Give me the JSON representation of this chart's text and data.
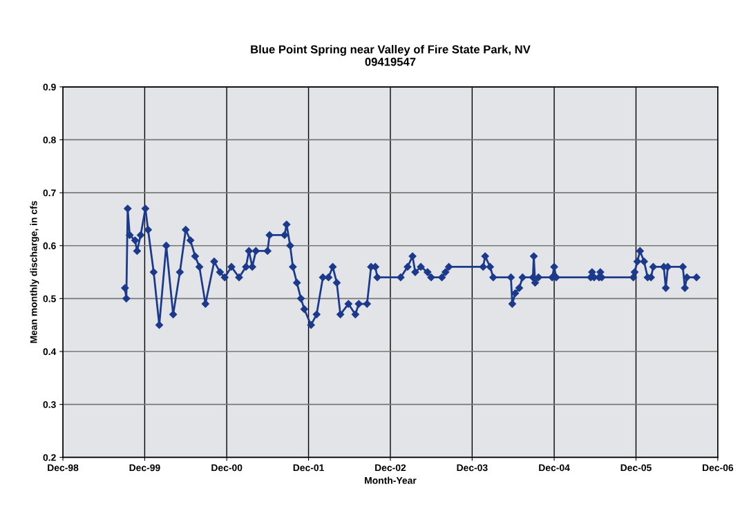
{
  "chart_data": {
    "type": "line",
    "title": "Blue Point Spring near Valley of Fire State Park, NV\n09419547",
    "xlabel": "Month-Year",
    "ylabel": "Mean monthly discharge, in cfs",
    "x": [
      "1999-09-04",
      "1999-09-10",
      "1999-09-16",
      "1999-09-25",
      "1999-10-19",
      "1999-10-28",
      "1999-11-13",
      "1999-12-04",
      "1999-12-16",
      "2000-01-10",
      "2000-02-04",
      "2000-03-06",
      "2000-04-06",
      "2000-05-06",
      "2000-06-01",
      "2000-06-22",
      "2000-07-13",
      "2000-08-01",
      "2000-08-28",
      "2000-10-06",
      "2000-11-01",
      "2000-11-22",
      "2000-12-22",
      "2001-01-25",
      "2001-02-25",
      "2001-03-10",
      "2001-03-25",
      "2001-04-10",
      "2001-06-01",
      "2001-06-10",
      "2001-08-16",
      "2001-08-25",
      "2001-09-10",
      "2001-09-22",
      "2001-10-10",
      "2001-10-28",
      "2001-11-12",
      "2001-12-12",
      "2002-01-06",
      "2002-02-03",
      "2002-02-28",
      "2002-03-19",
      "2002-04-06",
      "2002-04-22",
      "2002-05-28",
      "2002-06-28",
      "2002-07-13",
      "2002-08-19",
      "2002-09-06",
      "2002-09-25",
      "2002-10-04",
      "2003-01-16",
      "2003-02-16",
      "2003-03-10",
      "2003-03-22",
      "2003-04-16",
      "2003-05-16",
      "2003-06-01",
      "2003-07-19",
      "2003-08-04",
      "2003-08-19",
      "2004-01-19",
      "2004-01-28",
      "2004-02-19",
      "2004-03-04",
      "2004-05-22",
      "2004-05-28",
      "2004-06-10",
      "2004-06-28",
      "2004-07-13",
      "2004-08-28",
      "2004-09-01",
      "2004-09-07",
      "2004-09-22",
      "2004-11-22",
      "2004-12-01",
      "2004-12-10",
      "2005-05-13",
      "2005-05-19",
      "2005-05-28",
      "2005-06-19",
      "2005-06-25",
      "2005-07-01",
      "2005-11-19",
      "2005-11-25",
      "2005-12-07",
      "2005-12-19",
      "2006-01-06",
      "2006-01-22",
      "2006-02-06",
      "2006-02-16",
      "2006-04-04",
      "2006-04-13",
      "2006-04-22",
      "2006-06-28",
      "2006-07-07",
      "2006-07-16",
      "2006-08-28"
    ],
    "series": [
      {
        "color": "#1c3a8c",
        "values": [
          0.52,
          0.5,
          0.67,
          0.62,
          0.61,
          0.59,
          0.62,
          0.67,
          0.63,
          0.55,
          0.45,
          0.6,
          0.47,
          0.55,
          0.63,
          0.61,
          0.58,
          0.56,
          0.49,
          0.57,
          0.55,
          0.54,
          0.56,
          0.54,
          0.56,
          0.59,
          0.56,
          0.59,
          0.59,
          0.62,
          0.62,
          0.64,
          0.6,
          0.56,
          0.53,
          0.5,
          0.48,
          0.45,
          0.47,
          0.54,
          0.54,
          0.56,
          0.53,
          0.47,
          0.49,
          0.47,
          0.49,
          0.49,
          0.56,
          0.56,
          0.54,
          0.54,
          0.56,
          0.58,
          0.55,
          0.56,
          0.55,
          0.54,
          0.54,
          0.55,
          0.56,
          0.56,
          0.58,
          0.56,
          0.54,
          0.54,
          0.49,
          0.51,
          0.52,
          0.54,
          0.54,
          0.58,
          0.53,
          0.54,
          0.54,
          0.56,
          0.54,
          0.54,
          0.55,
          0.54,
          0.54,
          0.55,
          0.54,
          0.54,
          0.55,
          0.57,
          0.59,
          0.57,
          0.54,
          0.54,
          0.56,
          0.56,
          0.52,
          0.56,
          0.56,
          0.52,
          0.54,
          0.54
        ]
      }
    ],
    "xlim": [
      "1998-12-01",
      "2006-12-01"
    ],
    "xticks": [
      {
        "value": "1998-12-01",
        "label": "Dec-98"
      },
      {
        "value": "1999-12-01",
        "label": "Dec-99"
      },
      {
        "value": "2000-12-01",
        "label": "Dec-00"
      },
      {
        "value": "2001-12-01",
        "label": "Dec-01"
      },
      {
        "value": "2002-12-01",
        "label": "Dec-02"
      },
      {
        "value": "2003-12-01",
        "label": "Dec-03"
      },
      {
        "value": "2004-12-01",
        "label": "Dec-04"
      },
      {
        "value": "2005-12-01",
        "label": "Dec-05"
      },
      {
        "value": "2006-12-01",
        "label": "Dec-06"
      }
    ],
    "ylim": [
      0.2,
      0.9
    ],
    "yticks": [
      0.2,
      0.3,
      0.4,
      0.5,
      0.6,
      0.7,
      0.8,
      0.9
    ],
    "grid": true,
    "marker": "diamond",
    "line_style": "solid"
  }
}
